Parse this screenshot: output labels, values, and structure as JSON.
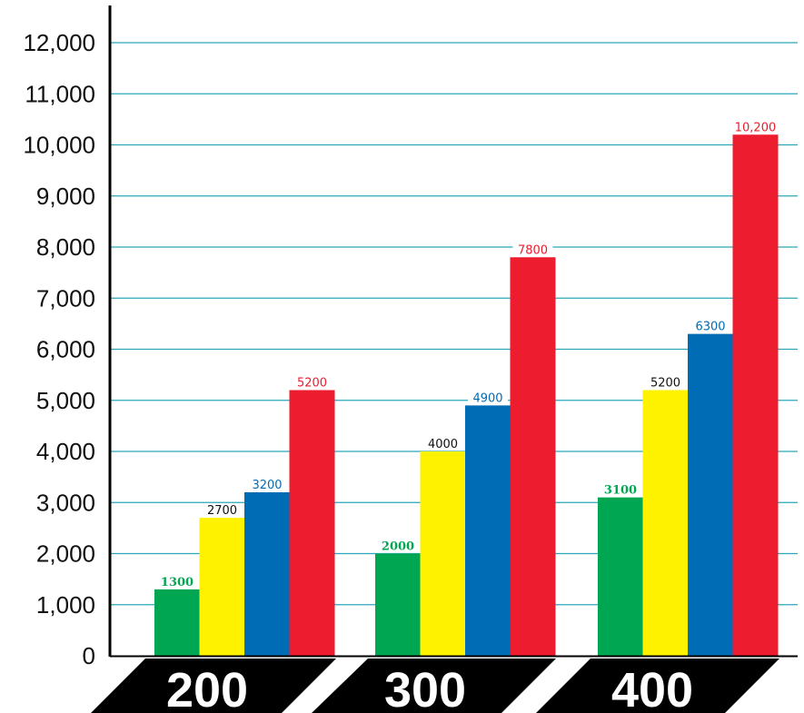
{
  "chart_data": {
    "type": "bar",
    "categories": [
      "200",
      "300",
      "400"
    ],
    "series": [
      {
        "color": "#00a651",
        "values": [
          1300,
          2000,
          3100
        ],
        "labels": [
          "1300",
          "2000",
          "3100"
        ]
      },
      {
        "color": "#fff200",
        "values": [
          2700,
          4000,
          5200
        ],
        "labels": [
          "2700",
          "4000",
          "5200"
        ]
      },
      {
        "color": "#006cb5",
        "values": [
          3200,
          4900,
          6300
        ],
        "labels": [
          "3200",
          "4900",
          "6300"
        ]
      },
      {
        "color": "#ed1c2e",
        "values": [
          5200,
          7800,
          10200
        ],
        "labels": [
          "5200",
          "7800",
          "10,200"
        ]
      }
    ],
    "ylim": [
      0,
      12000
    ],
    "yticks": [
      0,
      1000,
      2000,
      3000,
      4000,
      5000,
      6000,
      7000,
      8000,
      9000,
      10000,
      11000,
      12000
    ],
    "ytick_labels": [
      "0",
      "1,000",
      "2,000",
      "3,000",
      "4,000",
      "5,000",
      "6,000",
      "7,000",
      "8,000",
      "9,000",
      "10,000",
      "11,000",
      "12,000"
    ],
    "grid": true,
    "grid_color": "#2aa7b8",
    "label_colors": [
      "#00a651",
      "#111111",
      "#006cb5",
      "#ed1c2e"
    ],
    "category_band_color": "#000000",
    "title": "",
    "xlabel": "",
    "ylabel": ""
  }
}
